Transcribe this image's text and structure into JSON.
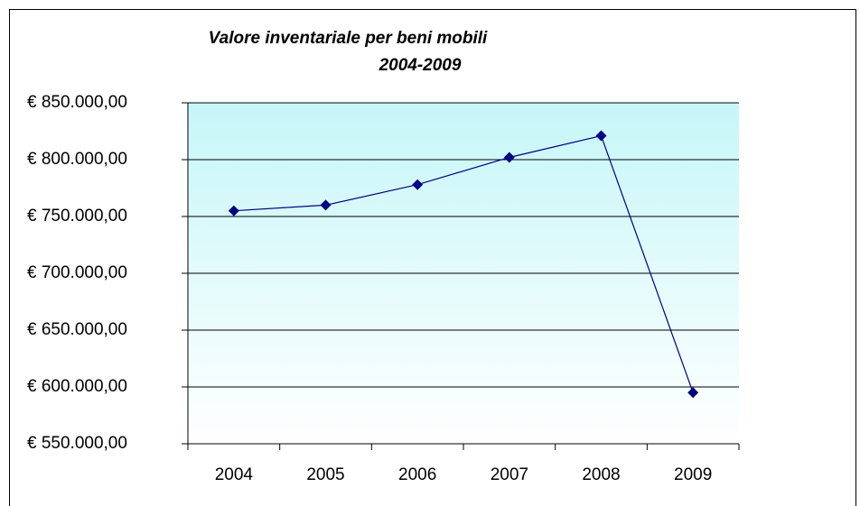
{
  "chart_data": {
    "type": "line",
    "title": [
      "Valore inventariale per beni mobili",
      "2004-2009"
    ],
    "categories": [
      "2004",
      "2005",
      "2006",
      "2007",
      "2008",
      "2009"
    ],
    "series": [
      {
        "name": "Valore inventariale",
        "color": "#000080",
        "values": [
          755000,
          760000,
          778000,
          802000,
          821000,
          595000
        ]
      }
    ],
    "ylim": [
      550000,
      850000
    ],
    "yticks": [
      {
        "value": 550000,
        "label": "€ 550.000,00"
      },
      {
        "value": 600000,
        "label": "€ 600.000,00"
      },
      {
        "value": 650000,
        "label": "€ 650.000,00"
      },
      {
        "value": 700000,
        "label": "€ 700.000,00"
      },
      {
        "value": 750000,
        "label": "€ 750.000,00"
      },
      {
        "value": 800000,
        "label": "€ 800.000,00"
      },
      {
        "value": 850000,
        "label": "€ 850.000,00"
      }
    ],
    "grid": true
  }
}
